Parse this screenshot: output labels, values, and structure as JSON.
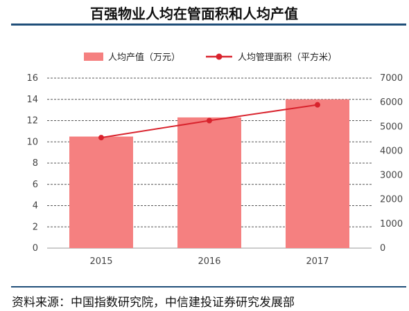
{
  "title": "百强物业人均在管面积和人均产值",
  "source": "资料来源：中国指数研究院，中信建投证券研究发展部",
  "chart_data": {
    "type": "bar",
    "categories": [
      "2015",
      "2016",
      "2017"
    ],
    "series": [
      {
        "name": "人均产值（万元）",
        "type": "bar",
        "axis": "left",
        "values": [
          10.5,
          12.3,
          14.0
        ],
        "color": "#f58080"
      },
      {
        "name": "人均管理面积（平方米）",
        "type": "line",
        "axis": "right",
        "values": [
          4550,
          5250,
          5900
        ],
        "color": "#d9232d"
      }
    ],
    "y_left": {
      "min": 0,
      "max": 16,
      "ticks": [
        0,
        2,
        4,
        6,
        8,
        10,
        12,
        14,
        16
      ]
    },
    "y_right": {
      "min": 0,
      "max": 7000,
      "ticks": [
        0,
        1000,
        2000,
        3000,
        4000,
        5000,
        6000,
        7000
      ]
    },
    "grid": "horizontal-dashed",
    "legend": "top"
  }
}
